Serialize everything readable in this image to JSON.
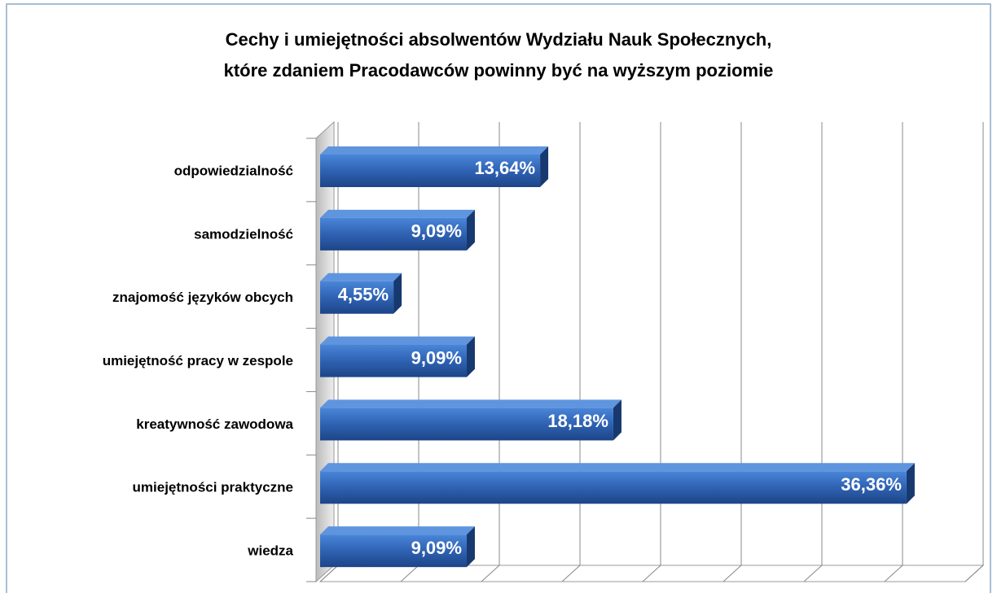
{
  "chart_data": {
    "type": "bar",
    "title": [
      "Cechy i umiejętności absolwentów Wydziału Nauk Społecznych,",
      "które zdaniem Pracodawców powinny być na wyższym poziomie"
    ],
    "categories": [
      "odpowiedzialność",
      "samodzielność",
      "znajomość języków obcych",
      "umiejętność pracy w zespole",
      "kreatywność zawodowa",
      "umiejętności praktyczne",
      "wiedza"
    ],
    "values": [
      13.64,
      9.09,
      4.55,
      9.09,
      18.18,
      36.36,
      9.09
    ],
    "value_labels": [
      "13,64%",
      "9,09%",
      "4,55%",
      "9,09%",
      "18,18%",
      "36,36%",
      "9,09%"
    ],
    "color": "#2f62b3",
    "xlim": [
      0,
      40
    ],
    "xticks": [
      0,
      5,
      10,
      15,
      20,
      25,
      30,
      35,
      40
    ],
    "grid": true
  }
}
